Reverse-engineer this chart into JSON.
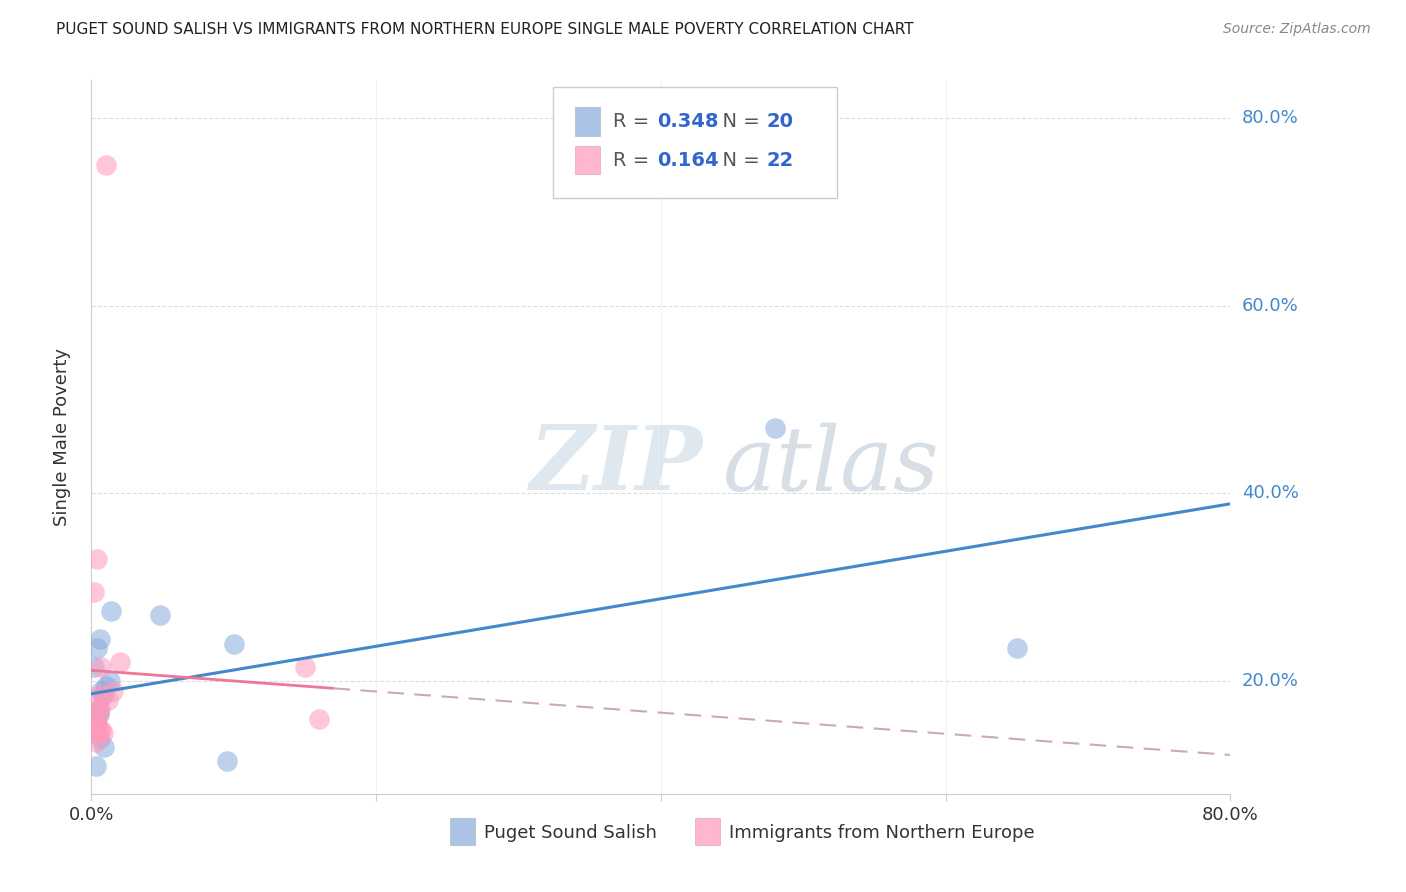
{
  "title": "PUGET SOUND SALISH VS IMMIGRANTS FROM NORTHERN EUROPE SINGLE MALE POVERTY CORRELATION CHART",
  "source": "Source: ZipAtlas.com",
  "ylabel": "Single Male Poverty",
  "x_min": 0.0,
  "x_max": 0.8,
  "y_min": 0.08,
  "y_max": 0.84,
  "yticks": [
    0.2,
    0.4,
    0.6,
    0.8
  ],
  "ytick_labels": [
    "20.0%",
    "40.0%",
    "60.0%",
    "80.0%"
  ],
  "blue_R": 0.348,
  "blue_N": 20,
  "pink_R": 0.164,
  "pink_N": 22,
  "blue_color": "#88AADD",
  "pink_color": "#FF99BB",
  "blue_label": "Puget Sound Salish",
  "pink_label": "Immigrants from Northern Europe",
  "blue_scatter_x": [
    0.005,
    0.008,
    0.01,
    0.013,
    0.005,
    0.007,
    0.003,
    0.004,
    0.006,
    0.009,
    0.002,
    0.004,
    0.006,
    0.014,
    0.003,
    0.048,
    0.095,
    0.1,
    0.48,
    0.65
  ],
  "blue_scatter_y": [
    0.17,
    0.185,
    0.195,
    0.2,
    0.165,
    0.19,
    0.155,
    0.165,
    0.14,
    0.13,
    0.215,
    0.235,
    0.245,
    0.275,
    0.11,
    0.27,
    0.115,
    0.24,
    0.47,
    0.235
  ],
  "pink_scatter_x": [
    0.01,
    0.004,
    0.006,
    0.008,
    0.003,
    0.005,
    0.007,
    0.002,
    0.004,
    0.006,
    0.003,
    0.008,
    0.012,
    0.005,
    0.004,
    0.007,
    0.003,
    0.15,
    0.015,
    0.16,
    0.003,
    0.02
  ],
  "pink_scatter_y": [
    0.75,
    0.17,
    0.185,
    0.185,
    0.155,
    0.165,
    0.215,
    0.295,
    0.33,
    0.17,
    0.145,
    0.145,
    0.18,
    0.15,
    0.148,
    0.148,
    0.135,
    0.215,
    0.19,
    0.16,
    0.148,
    0.22
  ],
  "watermark": "ZIPatlas",
  "background_color": "#FFFFFF",
  "grid_color": "#DDDDDD",
  "blue_line_color": "#4488CC",
  "pink_line_solid_color": "#EE7799",
  "pink_line_dash_color": "#CCAAAA"
}
